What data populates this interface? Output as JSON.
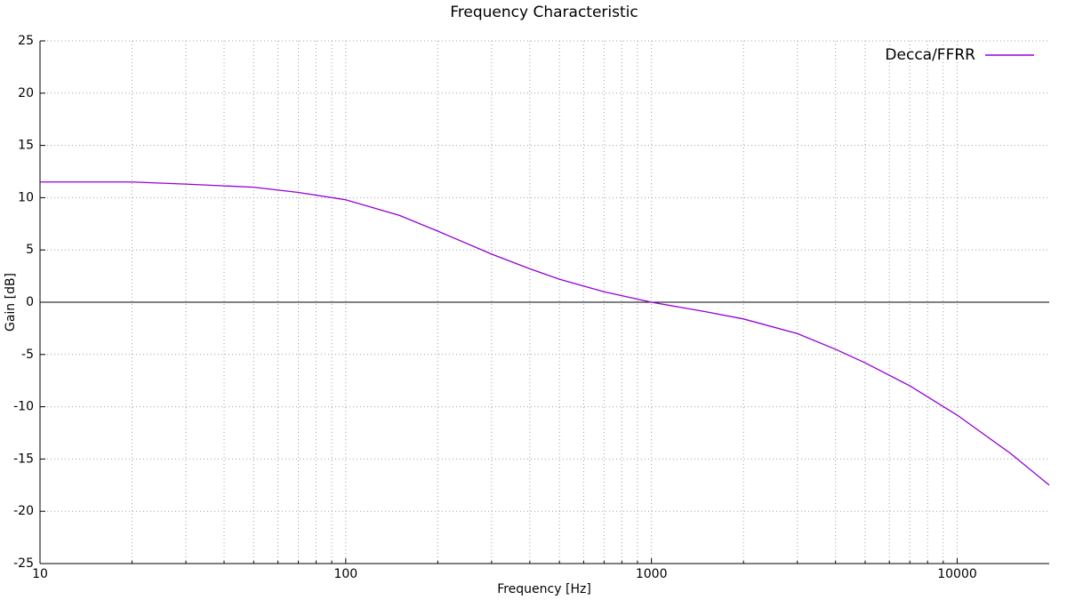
{
  "chart_data": {
    "type": "line",
    "title": "Frequency  Characteristic",
    "xlabel": "Frequency [Hz]",
    "ylabel": "Gain [dB]",
    "xscale": "log",
    "xlim": [
      10,
      20000
    ],
    "ylim": [
      -25,
      25
    ],
    "xticks": [
      10,
      100,
      1000,
      10000
    ],
    "xminorticks": [
      20,
      30,
      40,
      50,
      60,
      70,
      80,
      90,
      200,
      300,
      400,
      500,
      600,
      700,
      800,
      900,
      2000,
      3000,
      4000,
      5000,
      6000,
      7000,
      8000,
      9000
    ],
    "yticks": [
      -25,
      -20,
      -15,
      -10,
      -5,
      0,
      5,
      10,
      15,
      20,
      25
    ],
    "grid": true,
    "zero_line": true,
    "legend": "top-right",
    "x": [
      10,
      20,
      30,
      50,
      70,
      100,
      150,
      200,
      300,
      400,
      500,
      700,
      1000,
      1500,
      2000,
      3000,
      4000,
      5000,
      7000,
      10000,
      15000,
      20000
    ],
    "series": [
      {
        "name": "Decca/FFRR",
        "color": "#9400d3",
        "values": [
          11.5,
          11.5,
          11.3,
          11.0,
          10.5,
          9.8,
          8.3,
          6.8,
          4.6,
          3.2,
          2.2,
          1.0,
          0.0,
          -0.9,
          -1.6,
          -3.0,
          -4.5,
          -5.8,
          -8.0,
          -10.8,
          -14.5,
          -17.5
        ]
      }
    ]
  }
}
